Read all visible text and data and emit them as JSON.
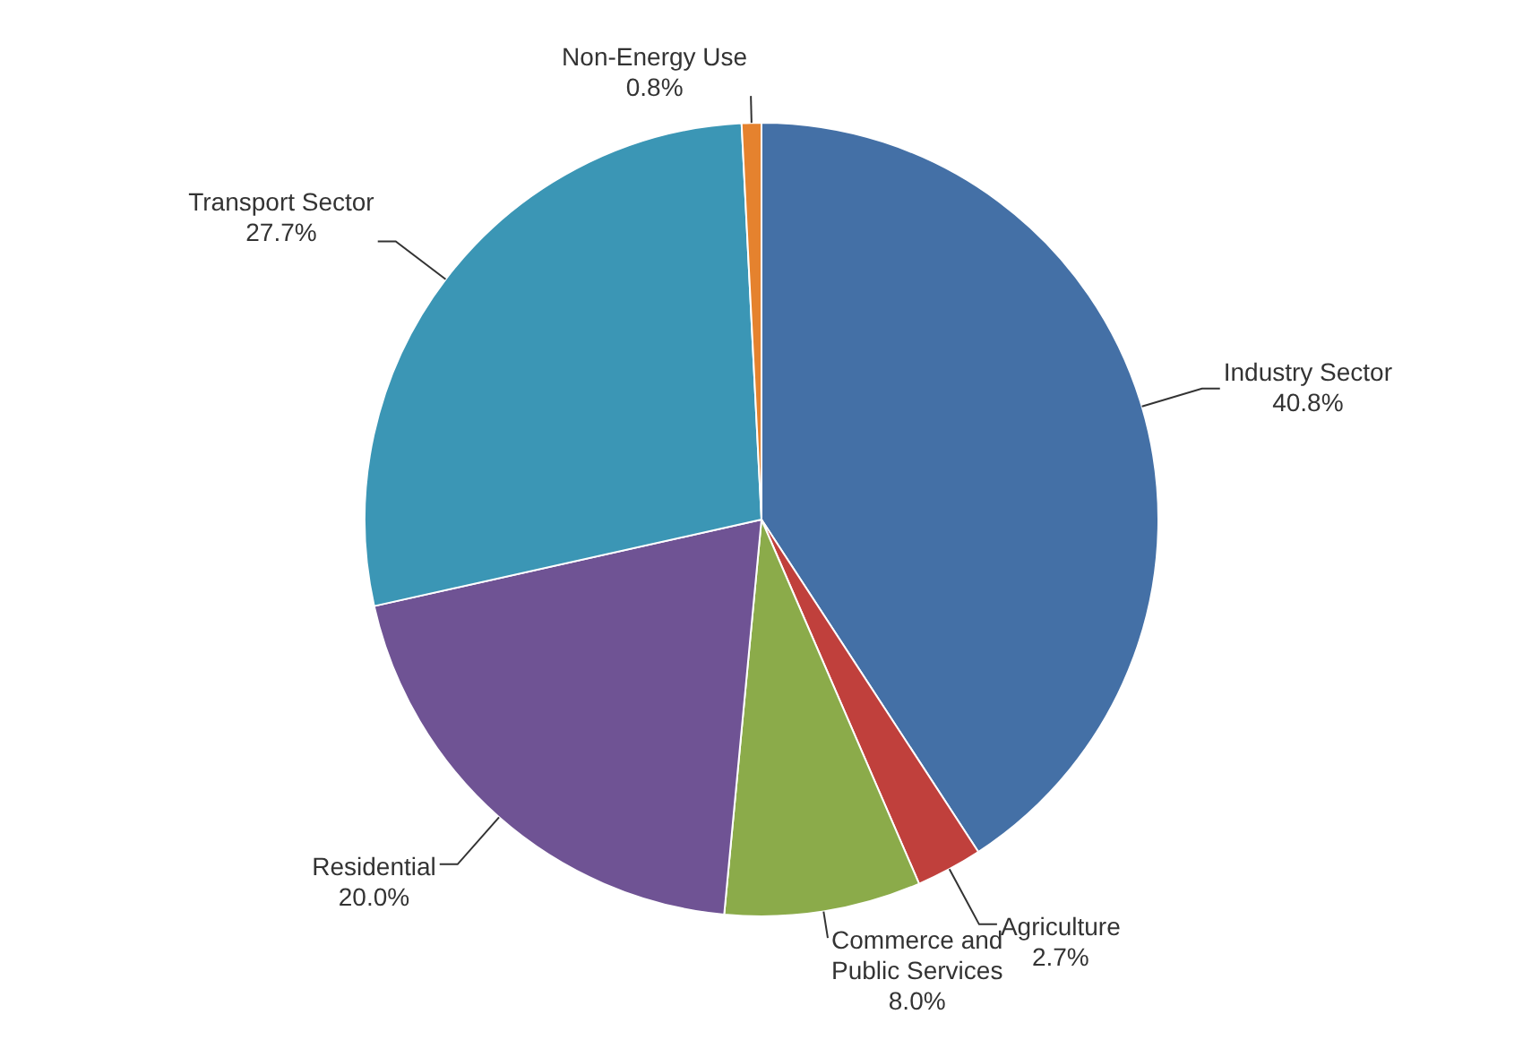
{
  "chart_data": {
    "type": "pie",
    "categories": [
      "Industry Sector",
      "Agriculture",
      "Commerce and Public Services",
      "Residential",
      "Transport Sector",
      "Non-Energy Use"
    ],
    "values": [
      40.8,
      2.7,
      8.0,
      20.0,
      27.7,
      0.8
    ],
    "colors": [
      "#4470a6",
      "#c0403c",
      "#8bab4a",
      "#6f5394",
      "#3b96b5",
      "#e5822e"
    ],
    "value_labels": [
      "40.8%",
      "2.7%",
      "8.0%",
      "20.0%",
      "27.7%",
      "0.8%"
    ],
    "legend": false
  }
}
